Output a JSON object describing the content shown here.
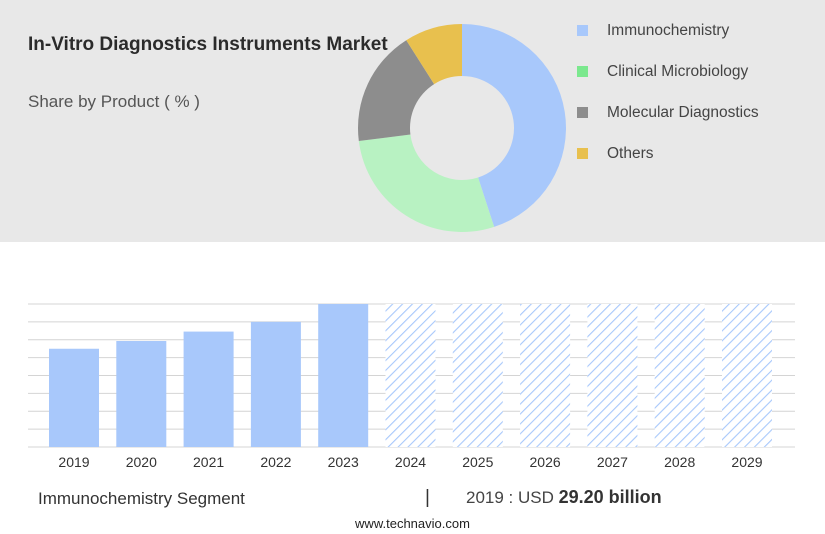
{
  "header": {
    "title": "In-Vitro Diagnostics Instruments Market",
    "subtitle": "Share by Product ( % )"
  },
  "legend": [
    {
      "label": "Immunochemistry",
      "color": "#a8c8fb"
    },
    {
      "label": "Clinical Microbiology",
      "color": "#7be88e"
    },
    {
      "label": "Molecular Diagnostics",
      "color": "#8d8d8d"
    },
    {
      "label": "Others",
      "color": "#e8c04e"
    }
  ],
  "footer": {
    "segment": "Immunochemistry Segment",
    "separator": "|",
    "year_label": "2019 : USD",
    "amount": "29.20 billion",
    "source": "www.technavio.com"
  },
  "chart_data": [
    {
      "type": "pie",
      "title": "In-Vitro Diagnostics Instruments Market",
      "subtitle": "Share by Product ( % )",
      "categories": [
        "Immunochemistry",
        "Clinical Microbiology",
        "Molecular Diagnostics",
        "Others"
      ],
      "values": [
        45,
        28,
        18,
        9
      ],
      "colors": [
        "#a8c8fb",
        "#b8f2c2",
        "#8d8d8d",
        "#e8c04e"
      ],
      "legend_position": "right"
    },
    {
      "type": "bar",
      "categories": [
        "2019",
        "2020",
        "2021",
        "2022",
        "2023",
        "2024",
        "2025",
        "2026",
        "2027",
        "2028",
        "2029"
      ],
      "values": [
        29.2,
        31.5,
        34.3,
        37.2,
        42.5,
        null,
        null,
        null,
        null,
        null,
        null
      ],
      "forecast_categories": [
        "2024",
        "2025",
        "2026",
        "2027",
        "2028",
        "2029"
      ],
      "ylim": [
        0,
        42.5
      ],
      "grid": true,
      "color": "#a8c8fb",
      "forecast_style": "hatched"
    }
  ]
}
